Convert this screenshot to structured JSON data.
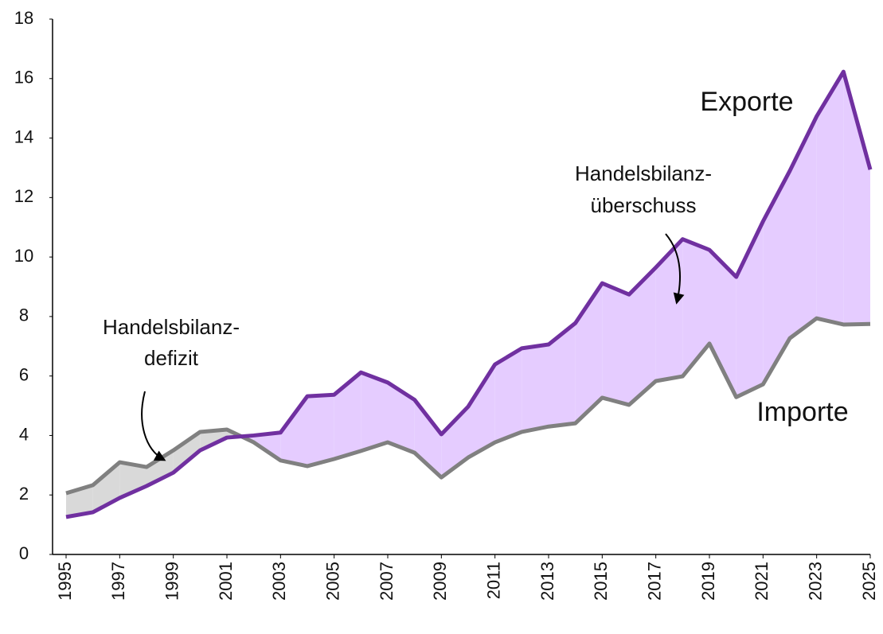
{
  "chart_data": {
    "type": "line",
    "x": [
      1995,
      1996,
      1997,
      1998,
      1999,
      2000,
      2001,
      2002,
      2003,
      2004,
      2005,
      2006,
      2007,
      2008,
      2009,
      2010,
      2011,
      2012,
      2013,
      2014,
      2015,
      2016,
      2017,
      2018,
      2019,
      2020,
      2021,
      2022,
      2023,
      2024,
      2025
    ],
    "series": [
      {
        "name": "Exporte",
        "color": "#7030a0",
        "fill": "#e5ccff",
        "values": [
          1.26,
          1.42,
          1.9,
          2.3,
          2.75,
          3.5,
          3.93,
          4.0,
          4.1,
          5.32,
          5.37,
          6.12,
          5.78,
          5.2,
          4.04,
          4.97,
          6.39,
          6.93,
          7.06,
          7.78,
          9.12,
          8.74,
          9.65,
          10.6,
          10.24,
          9.33,
          11.2,
          12.9,
          14.73,
          16.23,
          12.94
        ]
      },
      {
        "name": "Importe",
        "color": "#808080",
        "fill": "#d9d9d9",
        "values": [
          2.06,
          2.33,
          3.1,
          2.94,
          3.5,
          4.12,
          4.2,
          3.77,
          3.16,
          2.97,
          3.21,
          3.48,
          3.77,
          3.42,
          2.59,
          3.26,
          3.77,
          4.12,
          4.3,
          4.41,
          5.27,
          5.03,
          5.83,
          5.99,
          7.09,
          5.29,
          5.72,
          7.27,
          7.94,
          7.73,
          7.75
        ]
      }
    ],
    "annotations": [
      {
        "lines": [
          "Handelsbilanz-",
          "überschuss"
        ]
      },
      {
        "lines": [
          "Handelsbilanz-",
          "defizit"
        ]
      }
    ],
    "xlim": [
      1995,
      2025
    ],
    "xticks": [
      1995,
      1997,
      1999,
      2001,
      2003,
      2005,
      2007,
      2009,
      2011,
      2013,
      2015,
      2017,
      2019,
      2021,
      2023,
      2025
    ],
    "ylim": [
      0,
      18
    ],
    "yticks": [
      0,
      2,
      4,
      6,
      8,
      10,
      12,
      14,
      16,
      18
    ]
  }
}
